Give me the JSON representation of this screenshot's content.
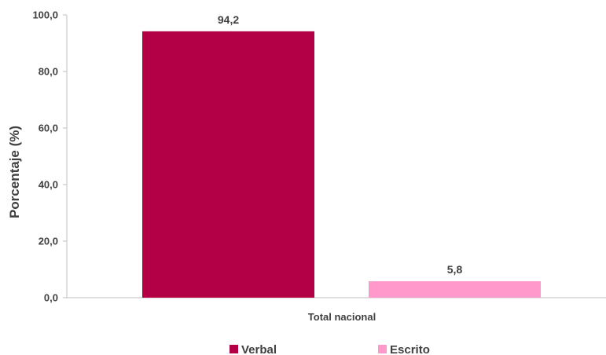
{
  "chart_data": {
    "type": "bar",
    "categories": [
      "Total nacional"
    ],
    "series": [
      {
        "name": "Verbal",
        "values": [
          94.2
        ],
        "color": "#B30045",
        "label": "94,2"
      },
      {
        "name": "Escrito",
        "values": [
          5.8
        ],
        "color": "#FF99CC",
        "label": "5,8"
      }
    ],
    "ylabel": "Porcentaje (%)",
    "ylim": [
      0,
      100
    ],
    "yticks": [
      0,
      20,
      40,
      60,
      80,
      100
    ],
    "ytick_labels": [
      "0,0",
      "20,0",
      "40,0",
      "60,0",
      "80,0",
      "100,0"
    ],
    "grid": false,
    "legend_position": "bottom"
  }
}
